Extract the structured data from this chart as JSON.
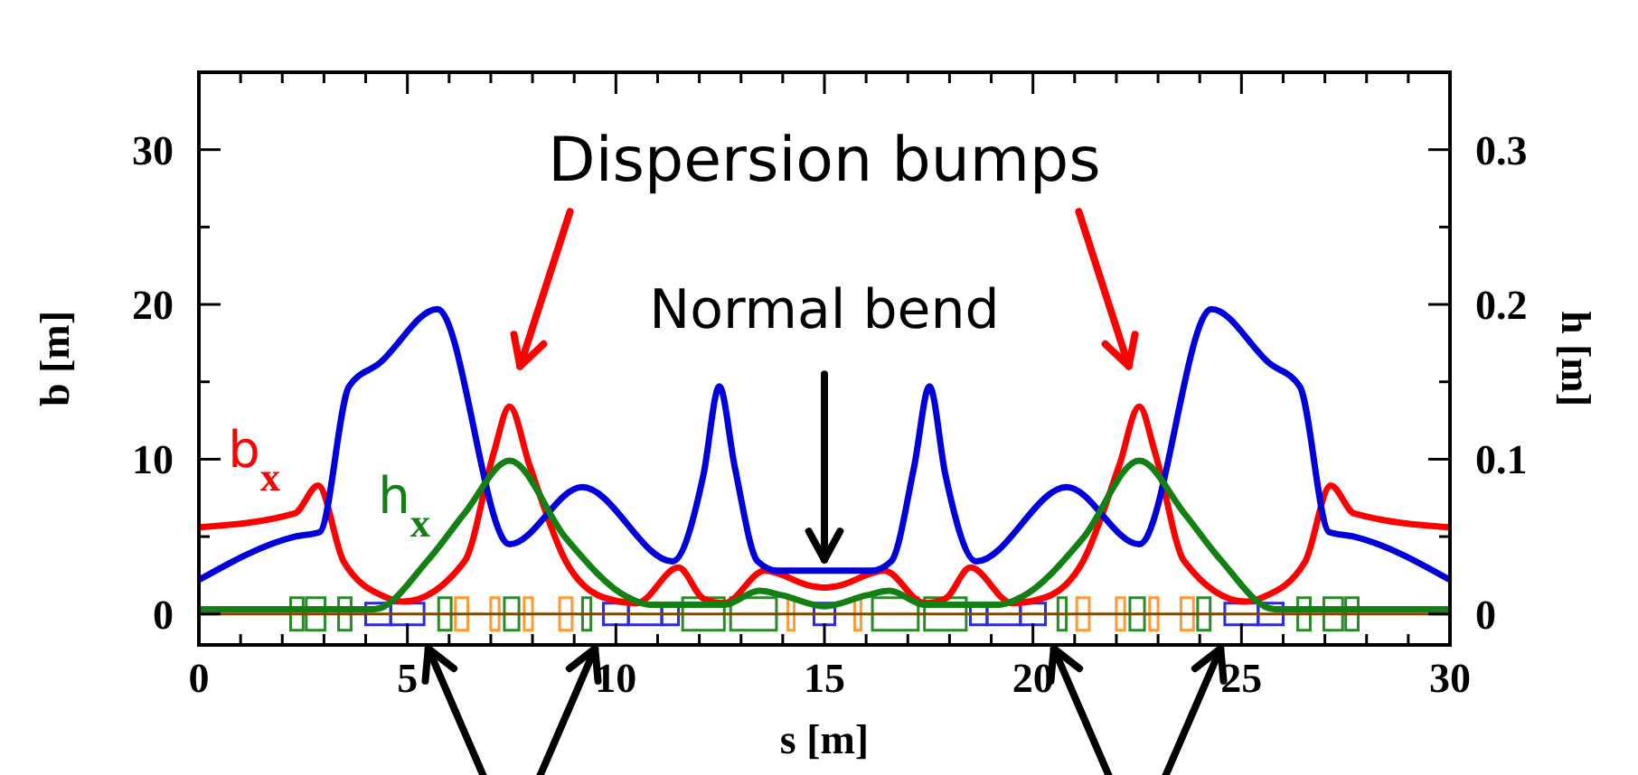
{
  "chart_data": {
    "type": "line",
    "xlabel": "s [m]",
    "ylabel": "b [m]",
    "y2label": "h [m]",
    "xlim": [
      0,
      30
    ],
    "ylim": [
      -2,
      35
    ],
    "y2lim": [
      -0.02,
      0.35
    ],
    "xticks": [
      0,
      {
        "value": 1,
        "label": null
      },
      {
        "value": 2,
        "label": null
      },
      {
        "value": 3,
        "label": null
      },
      {
        "value": 4,
        "label": null
      },
      5,
      {
        "value": 6,
        "label": null
      },
      {
        "value": 7,
        "label": null
      },
      {
        "value": 8,
        "label": null
      },
      {
        "value": 9,
        "label": null
      },
      10,
      {
        "value": 11,
        "label": null
      },
      {
        "value": 12,
        "label": null
      },
      {
        "value": 13,
        "label": null
      },
      {
        "value": 14,
        "label": null
      },
      15,
      {
        "value": 16,
        "label": null
      },
      {
        "value": 17,
        "label": null
      },
      {
        "value": 18,
        "label": null
      },
      {
        "value": 19,
        "label": null
      },
      20,
      {
        "value": 21,
        "label": null
      },
      {
        "value": 22,
        "label": null
      },
      {
        "value": 23,
        "label": null
      },
      {
        "value": 24,
        "label": null
      },
      25,
      {
        "value": 26,
        "label": null
      },
      {
        "value": 27,
        "label": null
      },
      {
        "value": 28,
        "label": null
      },
      {
        "value": 29,
        "label": null
      },
      30
    ],
    "yticks": [
      0,
      {
        "value": 5,
        "label": null
      },
      10,
      {
        "value": 15,
        "label": null
      },
      20,
      {
        "value": 25,
        "label": null
      },
      30
    ],
    "y2ticks": [
      0,
      {
        "value": 0.05,
        "label": null
      },
      0.1,
      {
        "value": 0.15,
        "label": null
      },
      0.2,
      {
        "value": 0.25,
        "label": null
      },
      0.3
    ],
    "grid": false,
    "ref_lines": [
      {
        "axis": "y",
        "value": 0,
        "color": "#7a4a00"
      }
    ],
    "marker": "none",
    "line_style": "solid",
    "annotations": [
      "Dispersion bumps",
      "Normal bend"
    ],
    "series": [
      {
        "name": "b$_{x}$",
        "color": "#ff0000",
        "x": [
          0,
          2.3,
          2.86,
          3.47,
          4.47,
          4.9,
          6.37,
          7.07,
          7.45,
          7.93,
          8.8,
          9.67,
          10.5,
          11.5,
          12.1,
          12.6,
          13.57,
          14.7,
          15,
          15.3,
          16.43,
          17.4,
          17.9,
          18.5,
          19.5,
          20.33,
          21.2,
          22.07,
          22.55,
          22.93,
          23.63,
          25.1,
          25.53,
          26.53,
          27.14,
          27.7,
          30
        ],
        "values": [
          5.6,
          6.5,
          8.3,
          3.4,
          1.1,
          0.8,
          3.4,
          10.4,
          13.4,
          9.6,
          3.4,
          1.1,
          0.7,
          3.0,
          1.0,
          0.7,
          2.8,
          1.8,
          1.7,
          1.8,
          2.8,
          0.7,
          1.0,
          3.0,
          0.7,
          1.1,
          3.4,
          9.6,
          13.4,
          10.4,
          3.4,
          0.8,
          1.1,
          3.4,
          8.3,
          6.5,
          5.6
        ]
      },
      {
        "color": "#0000dd",
        "x": [
          0,
          2.3,
          2.9,
          3.6,
          4.33,
          5.72,
          7.45,
          9.19,
          11.36,
          12.1,
          12.48,
          12.85,
          13.4,
          13.87,
          15,
          16.13,
          16.6,
          17.15,
          17.52,
          17.9,
          18.64,
          20.81,
          22.55,
          24.28,
          25.67,
          26.4,
          27.1,
          27.7,
          30
        ],
        "values": [
          2.2,
          5.0,
          5.3,
          14.7,
          16.2,
          19.7,
          4.5,
          8.2,
          3.4,
          9.0,
          14.7,
          9.5,
          3.4,
          2.8,
          2.8,
          2.8,
          3.4,
          9.5,
          14.7,
          9.0,
          3.4,
          8.2,
          4.5,
          19.7,
          16.2,
          14.7,
          5.3,
          5.0,
          2.2
        ]
      },
      {
        "name": "h$_{x}$",
        "color": "#138013",
        "axis": "y2",
        "x": [
          0,
          4.2,
          5.5,
          6.37,
          7.45,
          8.8,
          10.27,
          10.8,
          12.6,
          13.44,
          14.0,
          15,
          16.0,
          16.56,
          17.4,
          19.2,
          19.73,
          21.2,
          22.55,
          23.63,
          24.5,
          25.8,
          30
        ],
        "values": [
          0.003,
          0.003,
          0.035,
          0.065,
          0.099,
          0.049,
          0.011,
          0.006,
          0.006,
          0.015,
          0.012,
          0.005,
          0.012,
          0.015,
          0.006,
          0.006,
          0.011,
          0.049,
          0.099,
          0.065,
          0.035,
          0.003,
          0.003
        ]
      }
    ]
  }
}
